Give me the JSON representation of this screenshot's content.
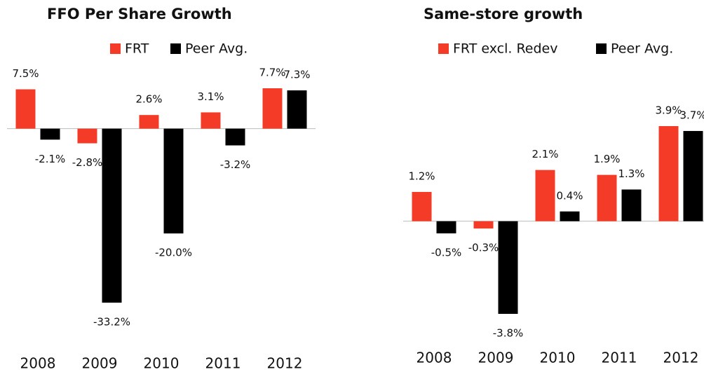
{
  "chart_data": [
    {
      "type": "bar",
      "title": "FFO Per Share Growth",
      "categories": [
        "2008",
        "2009",
        "2010",
        "2011",
        "2012"
      ],
      "series": [
        {
          "name": "FRT",
          "color": "#f43b27",
          "values": [
            7.5,
            -2.8,
            2.6,
            3.1,
            7.7
          ],
          "value_labels": [
            "7.5%",
            "-2.8%",
            "2.6%",
            "3.1%",
            "7.7%"
          ]
        },
        {
          "name": "Peer Avg.",
          "color": "#000000",
          "values": [
            -2.1,
            -33.2,
            -20.0,
            -3.2,
            7.3
          ],
          "value_labels": [
            "-2.1%",
            "-33.2%",
            "-20.0%",
            "-3.2%",
            "7.3%"
          ]
        }
      ]
    },
    {
      "type": "bar",
      "title": "Same-store growth",
      "categories": [
        "2008",
        "2009",
        "2010",
        "2011",
        "2012"
      ],
      "series": [
        {
          "name": "FRT excl. Redev",
          "color": "#f43b27",
          "values": [
            1.2,
            -0.3,
            2.1,
            1.9,
            3.9
          ],
          "value_labels": [
            "1.2%",
            "-0.3%",
            "2.1%",
            "1.9%",
            "3.9%"
          ]
        },
        {
          "name": "Peer Avg.",
          "color": "#000000",
          "values": [
            -0.5,
            -3.8,
            0.4,
            1.3,
            3.7
          ],
          "value_labels": [
            "-0.5%",
            "-3.8%",
            "0.4%",
            "1.3%",
            "3.7%"
          ]
        }
      ]
    }
  ]
}
